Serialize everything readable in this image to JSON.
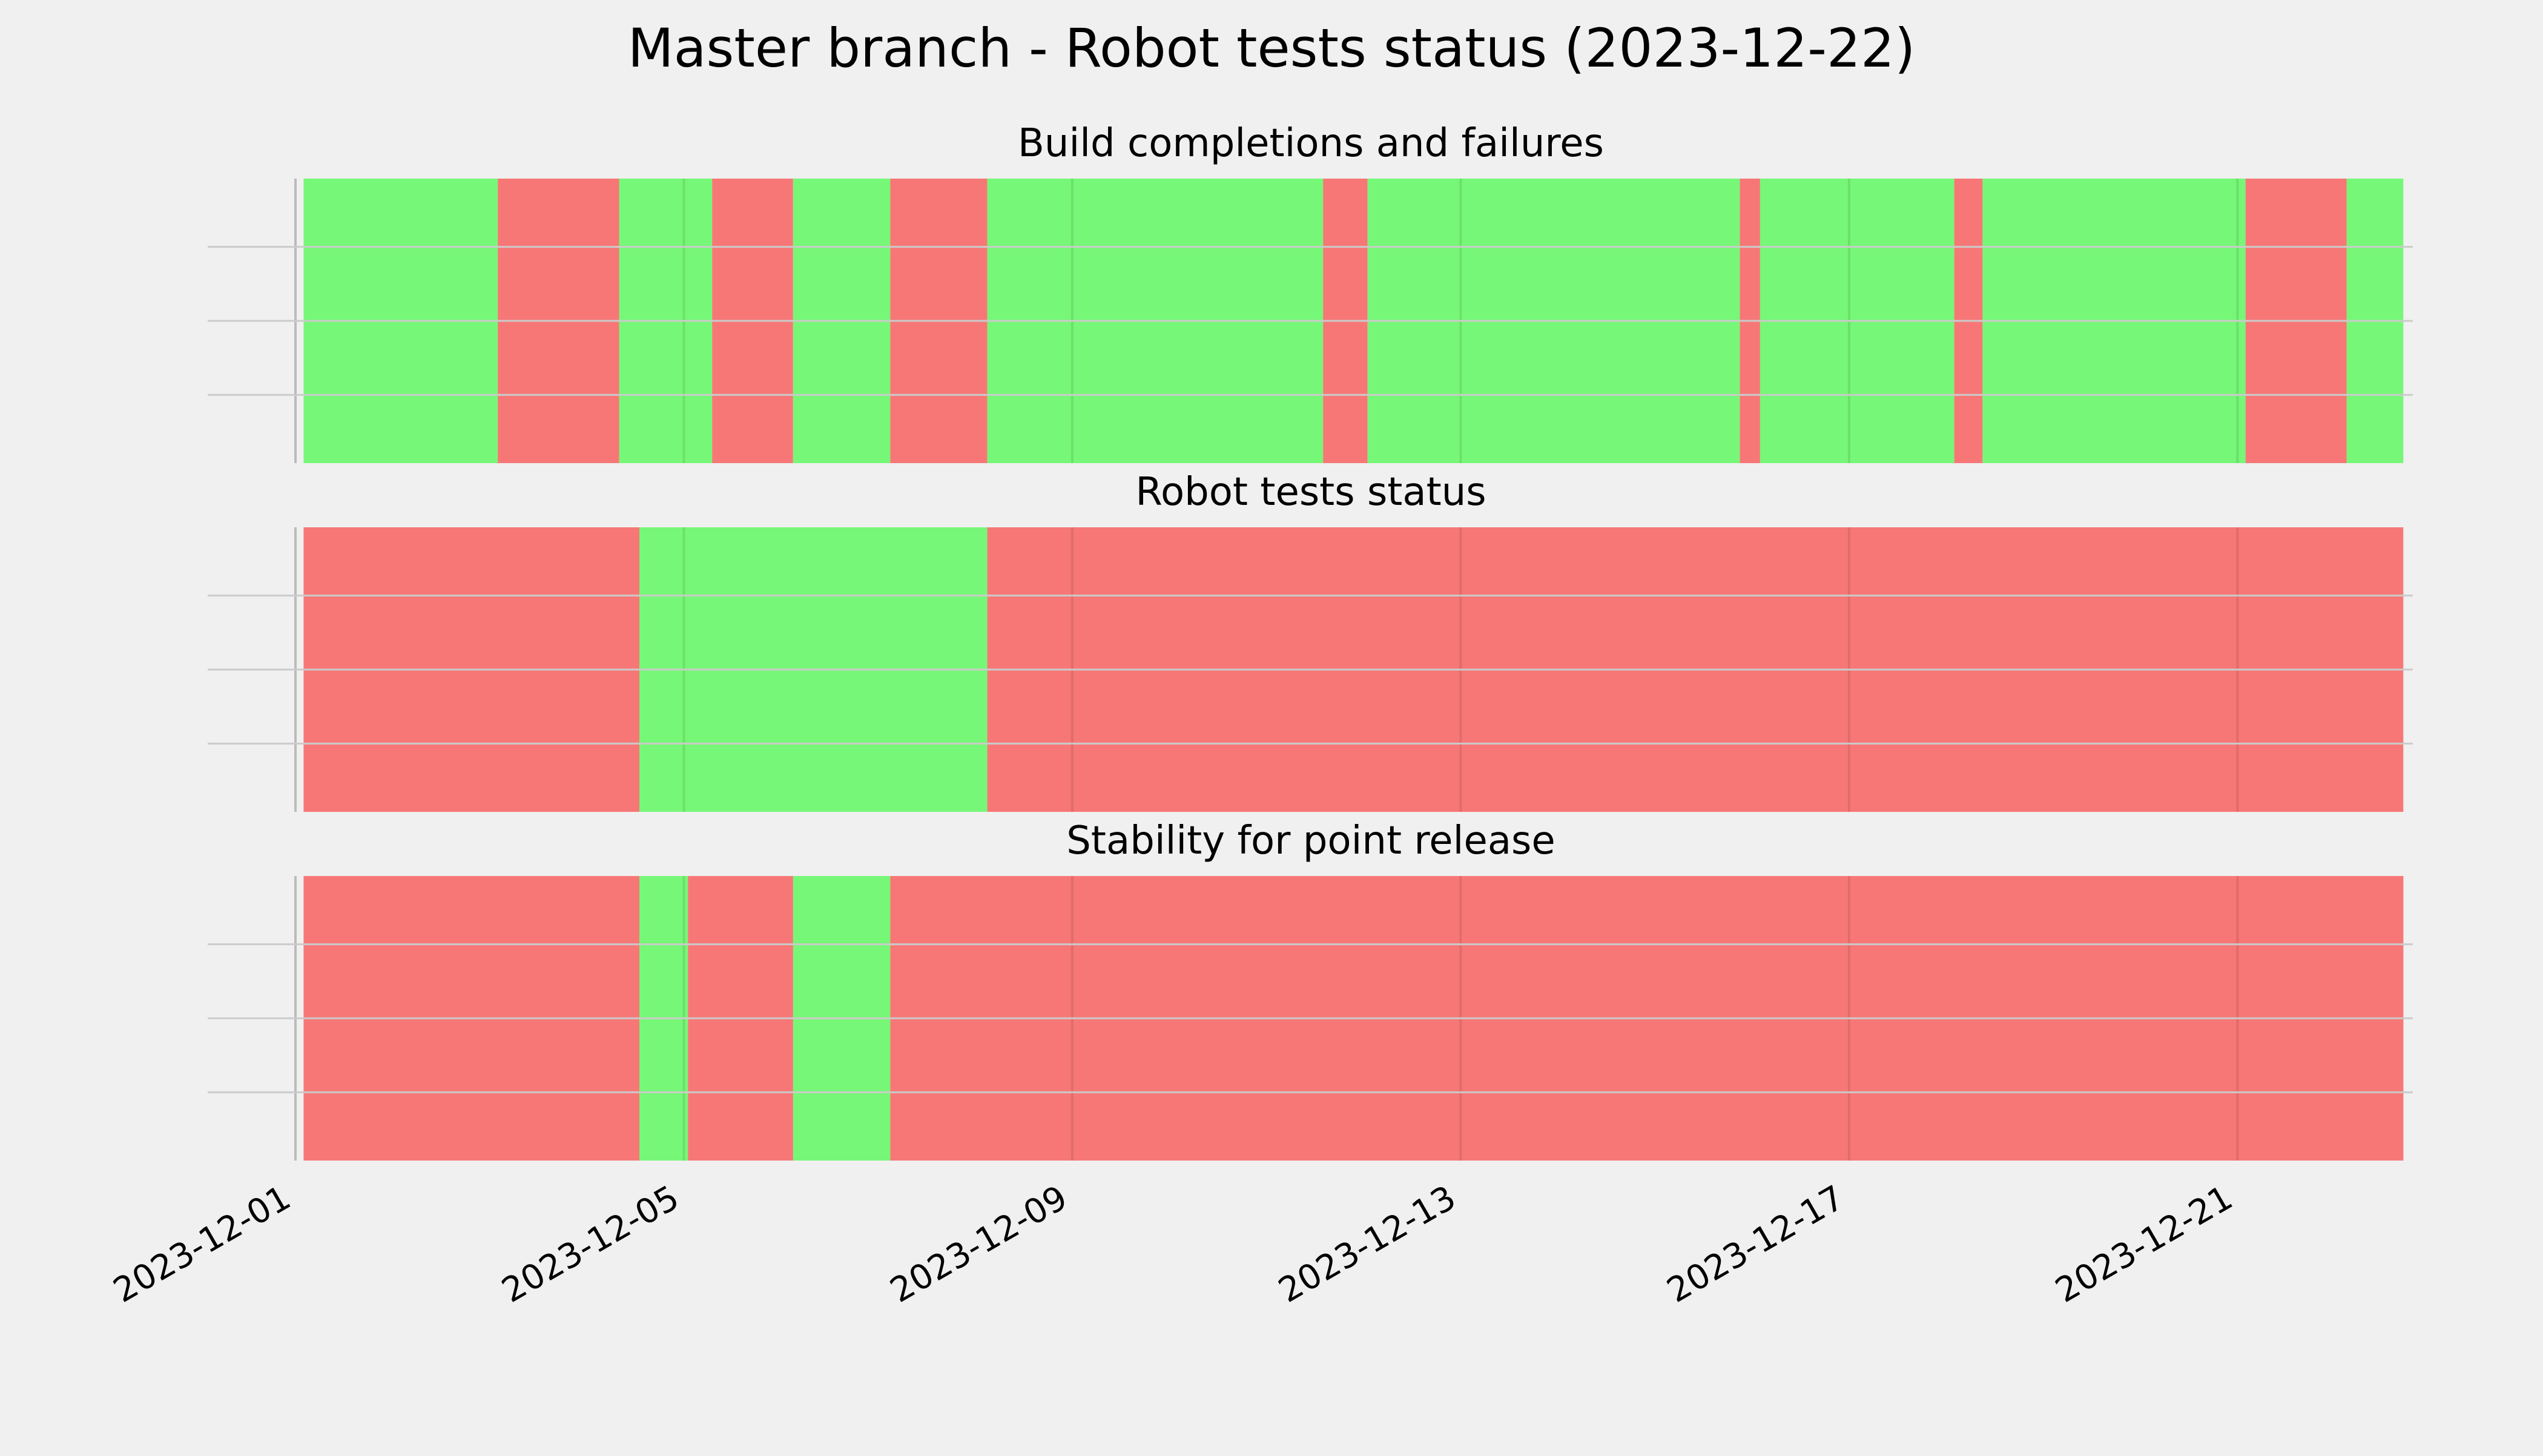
{
  "chart_data": {
    "type": "timeline",
    "title": "Master branch - Robot tests status (2023-12-22)",
    "x_axis": {
      "type": "date",
      "range": [
        "2023-12-01",
        "2023-12-22T23:59"
      ],
      "ticks": [
        "2023-12-01",
        "2023-12-05",
        "2023-12-09",
        "2023-12-13",
        "2023-12-17",
        "2023-12-21"
      ],
      "tick_label_rotation": 30
    },
    "status_colors": {
      "success": "#77f777",
      "failure": "#f77777"
    },
    "grid": true,
    "panels": [
      {
        "title": "Build completions and failures",
        "segments": [
          {
            "start": "2023-12-01T02:00",
            "end": "2023-12-03T02:00",
            "status": "success"
          },
          {
            "start": "2023-12-03T02:00",
            "end": "2023-12-04T08:00",
            "status": "failure"
          },
          {
            "start": "2023-12-04T08:00",
            "end": "2023-12-05T07:00",
            "status": "success"
          },
          {
            "start": "2023-12-05T07:00",
            "end": "2023-12-06T03:00",
            "status": "failure"
          },
          {
            "start": "2023-12-06T03:00",
            "end": "2023-12-07T03:00",
            "status": "success"
          },
          {
            "start": "2023-12-07T03:00",
            "end": "2023-12-08T03:00",
            "status": "failure"
          },
          {
            "start": "2023-12-08T03:00",
            "end": "2023-12-11T14:00",
            "status": "success"
          },
          {
            "start": "2023-12-11T14:00",
            "end": "2023-12-12T01:00",
            "status": "failure"
          },
          {
            "start": "2023-12-12T01:00",
            "end": "2023-12-15T21:00",
            "status": "success"
          },
          {
            "start": "2023-12-15T21:00",
            "end": "2023-12-16T02:00",
            "status": "failure"
          },
          {
            "start": "2023-12-16T02:00",
            "end": "2023-12-18T02:00",
            "status": "success"
          },
          {
            "start": "2023-12-18T02:00",
            "end": "2023-12-18T09:00",
            "status": "failure"
          },
          {
            "start": "2023-12-18T09:00",
            "end": "2023-12-21T02:00",
            "status": "success"
          },
          {
            "start": "2023-12-21T02:00",
            "end": "2023-12-22T03:00",
            "status": "failure"
          },
          {
            "start": "2023-12-22T03:00",
            "end": "2023-12-22T17:00",
            "status": "success"
          }
        ]
      },
      {
        "title": "Robot tests status",
        "segments": [
          {
            "start": "2023-12-01T02:00",
            "end": "2023-12-04T13:00",
            "status": "failure"
          },
          {
            "start": "2023-12-04T13:00",
            "end": "2023-12-08T03:00",
            "status": "success"
          },
          {
            "start": "2023-12-08T03:00",
            "end": "2023-12-22T17:00",
            "status": "failure"
          }
        ]
      },
      {
        "title": "Stability for point release",
        "segments": [
          {
            "start": "2023-12-01T02:00",
            "end": "2023-12-04T13:00",
            "status": "failure"
          },
          {
            "start": "2023-12-04T13:00",
            "end": "2023-12-05T01:00",
            "status": "success"
          },
          {
            "start": "2023-12-05T01:00",
            "end": "2023-12-06T03:00",
            "status": "failure"
          },
          {
            "start": "2023-12-06T03:00",
            "end": "2023-12-07T03:00",
            "status": "success"
          },
          {
            "start": "2023-12-07T03:00",
            "end": "2023-12-22T17:00",
            "status": "failure"
          }
        ]
      }
    ]
  }
}
